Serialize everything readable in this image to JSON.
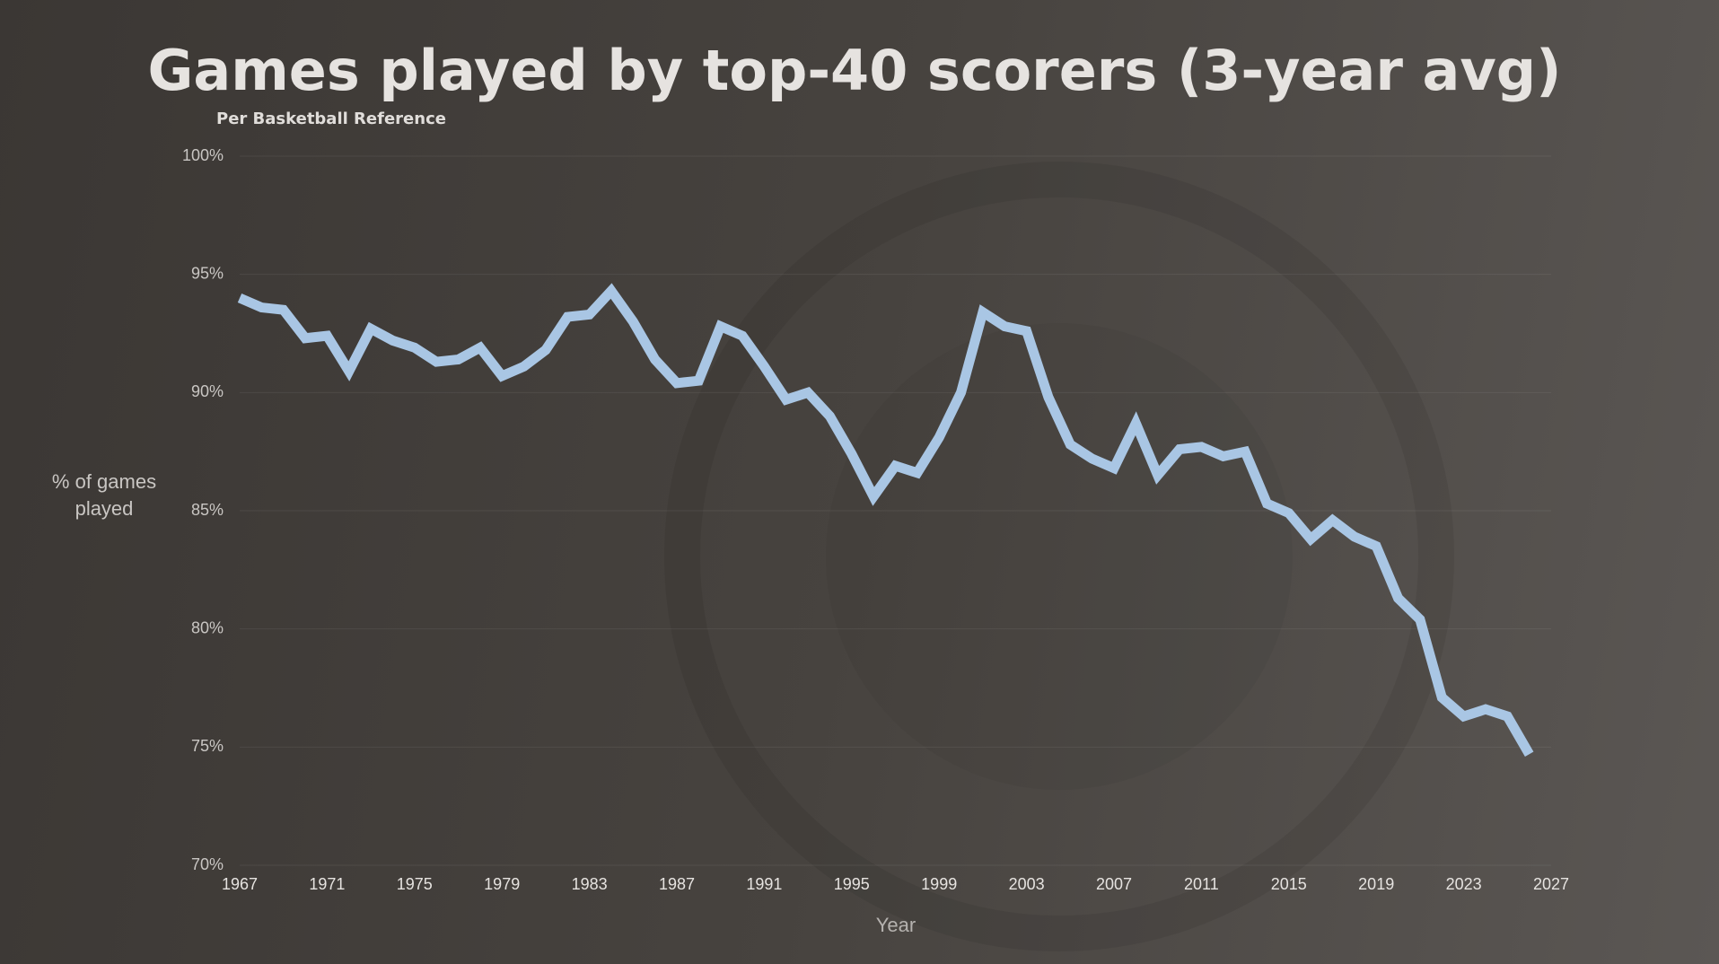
{
  "chart_data": {
    "type": "line",
    "title": "Games played by top-40 scorers (3-year avg)",
    "subtitle": "Per Basketball Reference",
    "y_label": "% of games played",
    "x_label": "Year",
    "x": [
      1967,
      1968,
      1969,
      1970,
      1971,
      1972,
      1973,
      1974,
      1975,
      1976,
      1977,
      1978,
      1979,
      1980,
      1981,
      1982,
      1983,
      1984,
      1985,
      1986,
      1987,
      1988,
      1989,
      1990,
      1991,
      1992,
      1993,
      1994,
      1995,
      1996,
      1997,
      1998,
      1999,
      2000,
      2001,
      2002,
      2003,
      2004,
      2005,
      2006,
      2007,
      2008,
      2009,
      2010,
      2011,
      2012,
      2013,
      2014,
      2015,
      2016,
      2017,
      2018,
      2019,
      2020,
      2021,
      2022,
      2023,
      2024,
      2025,
      2026
    ],
    "series": [
      {
        "color": "#a9c6e4",
        "values": [
          94.0,
          93.6,
          93.5,
          92.3,
          92.4,
          90.9,
          92.7,
          92.2,
          91.9,
          91.3,
          91.4,
          91.9,
          90.7,
          91.1,
          91.8,
          93.2,
          93.3,
          94.3,
          93.0,
          91.4,
          90.4,
          90.5,
          92.8,
          92.4,
          91.1,
          89.7,
          90.0,
          89.0,
          87.4,
          85.6,
          86.9,
          86.6,
          88.1,
          90.0,
          93.4,
          92.8,
          92.6,
          89.8,
          87.8,
          87.2,
          86.8,
          88.7,
          86.5,
          87.6,
          87.7,
          87.3,
          87.5,
          85.3,
          84.9,
          83.8,
          84.6,
          83.9,
          83.5,
          81.3,
          80.4,
          77.1,
          76.3,
          76.6,
          76.3,
          74.7
        ]
      }
    ],
    "xlim": [
      1967,
      2027
    ],
    "xticks": [
      1967,
      1971,
      1975,
      1979,
      1983,
      1987,
      1991,
      1995,
      1999,
      2003,
      2007,
      2011,
      2015,
      2019,
      2023,
      2027
    ],
    "ylim": [
      70,
      100
    ],
    "yticks": [
      {
        "value": 70,
        "label": "70%"
      },
      {
        "value": 75,
        "label": "75%"
      },
      {
        "value": 80,
        "label": "80%"
      },
      {
        "value": 85,
        "label": "85%"
      },
      {
        "value": 90,
        "label": "90%"
      },
      {
        "value": 95,
        "label": "95%"
      },
      {
        "value": 100,
        "label": "100%"
      }
    ],
    "grid": true
  }
}
